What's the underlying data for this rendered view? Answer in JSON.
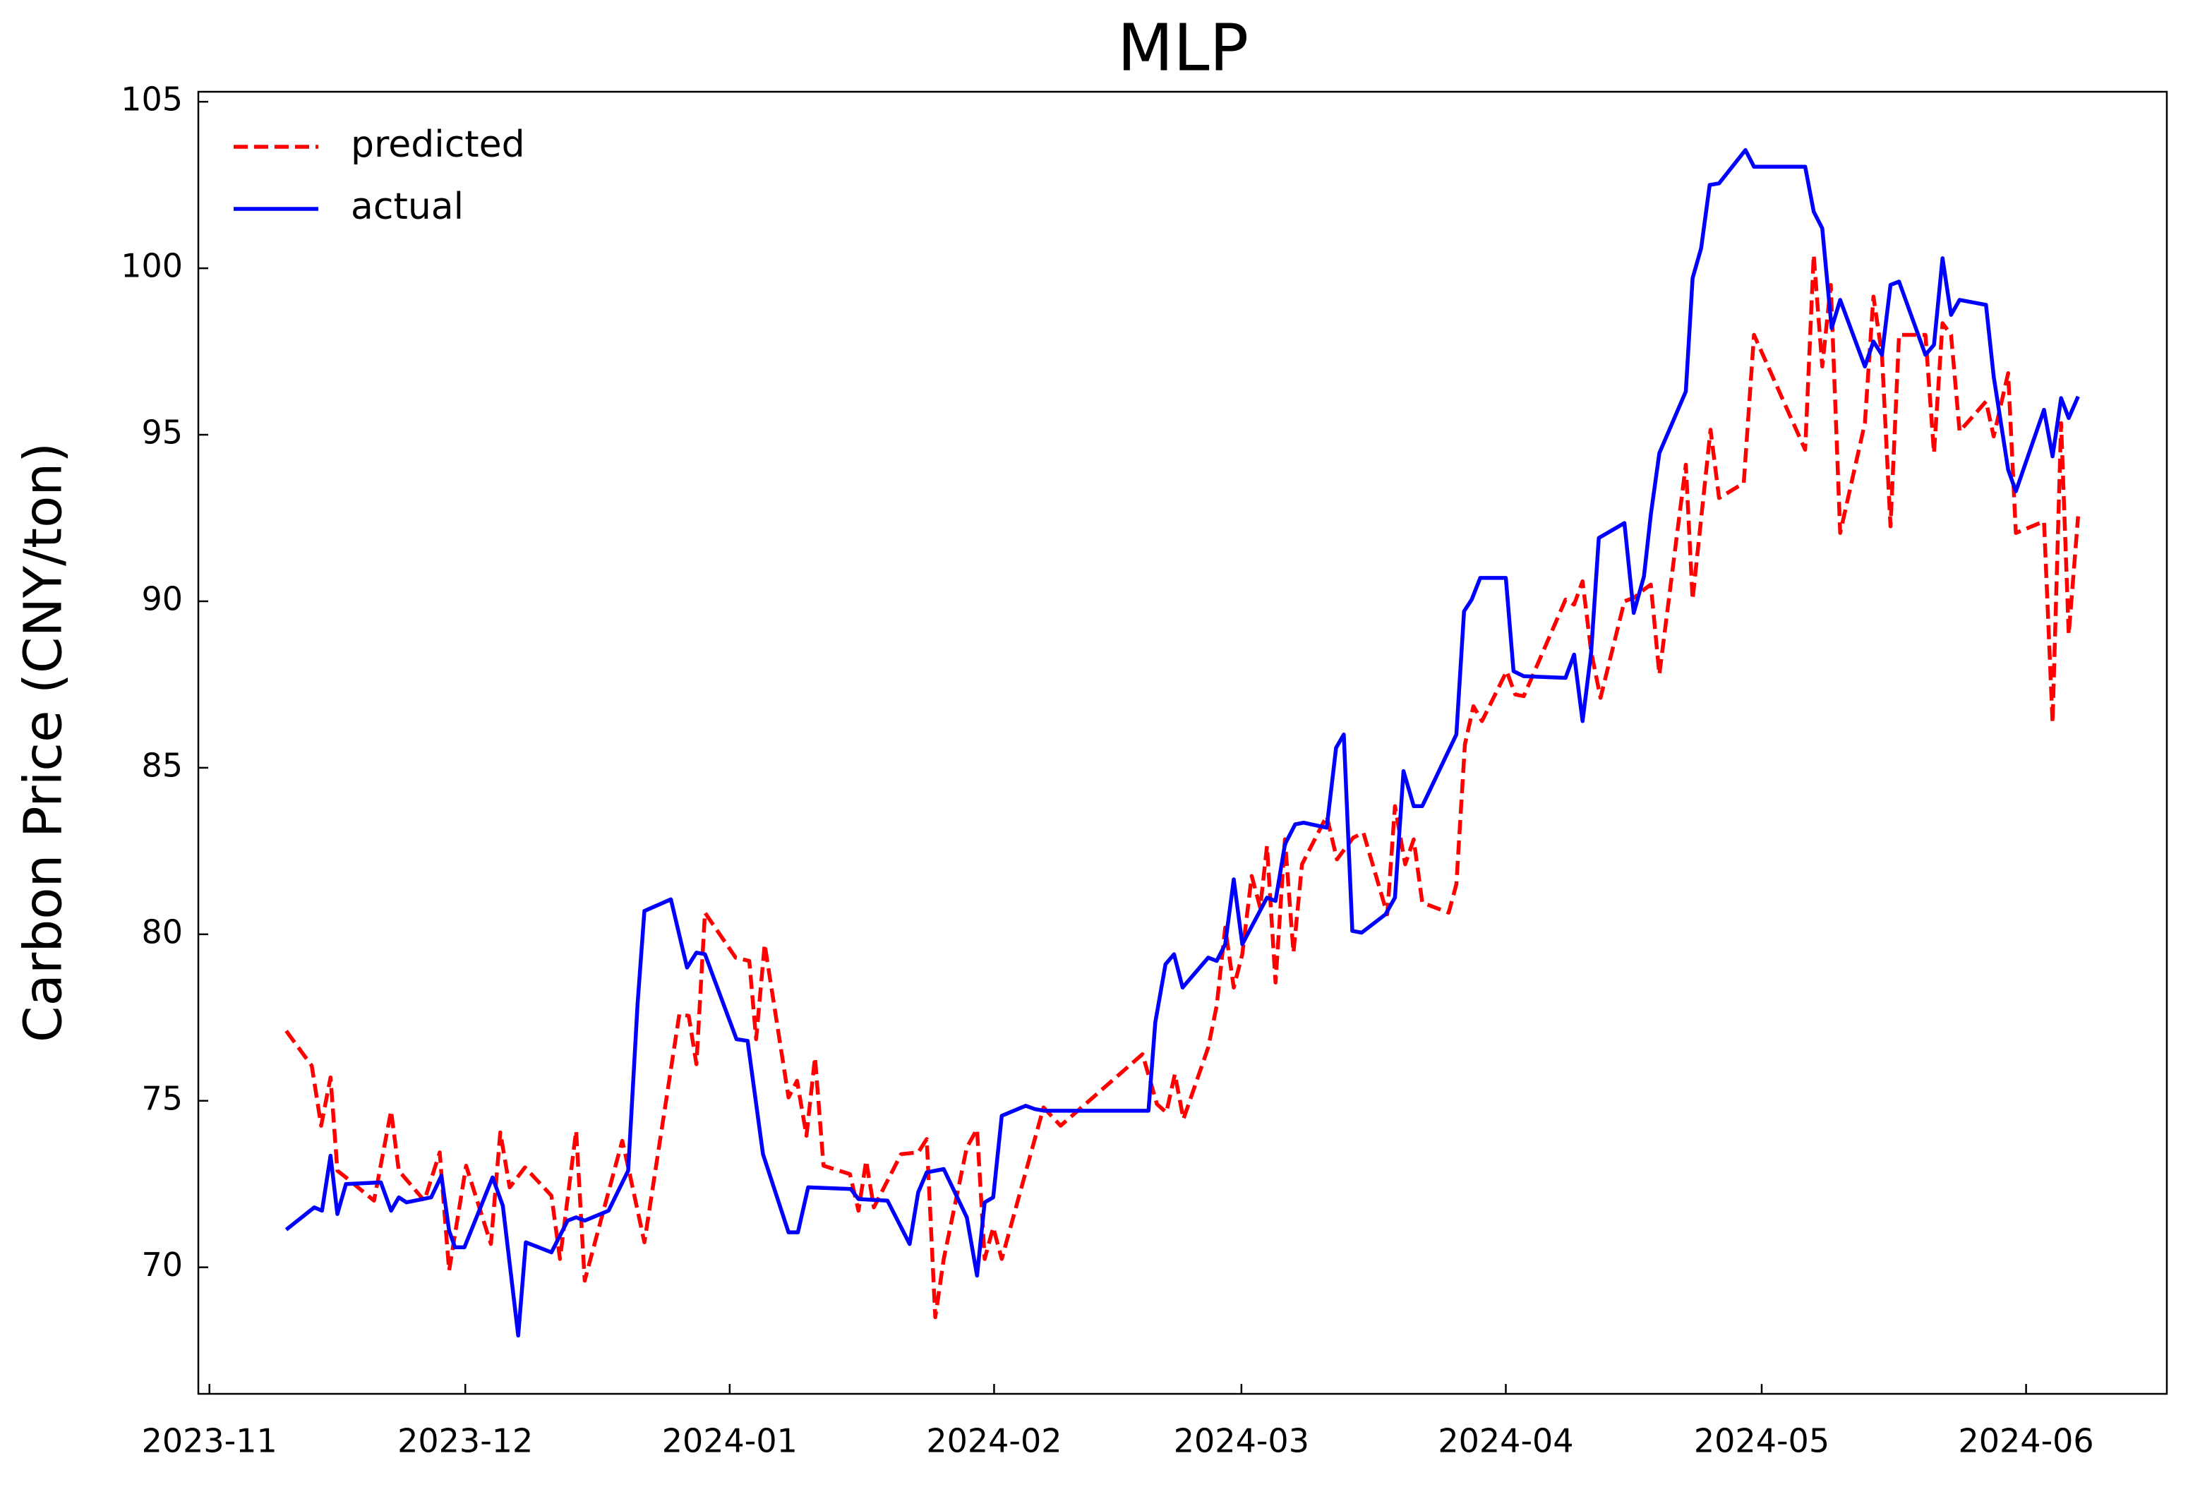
{
  "chart_data": {
    "type": "line",
    "title": "MLP",
    "y_label": "Carbon Price (CNY/ton)",
    "xlim": [
      -1.3,
      229.5
    ],
    "ylim": [
      66.2,
      105.3
    ],
    "xticks": [
      {
        "value": 0,
        "label": "2023-11"
      },
      {
        "value": 30,
        "label": "2023-12"
      },
      {
        "value": 61,
        "label": "2024-01"
      },
      {
        "value": 92,
        "label": "2024-02"
      },
      {
        "value": 121,
        "label": "2024-03"
      },
      {
        "value": 152,
        "label": "2024-04"
      },
      {
        "value": 182,
        "label": "2024-05"
      },
      {
        "value": 213,
        "label": "2024-06"
      }
    ],
    "yticks": [
      70,
      75,
      80,
      85,
      90,
      95,
      100,
      105
    ],
    "grid": false,
    "legend": "upper left",
    "series": [
      {
        "name": "predicted",
        "color": "#ff0000",
        "dash": true,
        "x": [
          9.0,
          12.0,
          13.1,
          14.2,
          15.0,
          16.0,
          19.3,
          21.3,
          22.2,
          25.2,
          27.0,
          28.1,
          30.1,
          33.0,
          34.1,
          35.2,
          37.0,
          40.1,
          41.1,
          43.0,
          44.0,
          48.4,
          49.2,
          51.0,
          55.1,
          56.2,
          57.1,
          58.1,
          61.7,
          63.3,
          64.1,
          65.1,
          67.9,
          68.9,
          70.0,
          71.0,
          72.0,
          75.1,
          76.1,
          77.0,
          77.9,
          81.1,
          83.1,
          84.1,
          85.1,
          86.1,
          88.8,
          90.0,
          90.9,
          91.9,
          92.9,
          97.8,
          99.8,
          109.4,
          111.1,
          112.2,
          113.2,
          114.2,
          117.1,
          118.1,
          119.1,
          120.1,
          121.1,
          122.2,
          123.2,
          124.0,
          125.0,
          126.1,
          127.1,
          128.1,
          131.0,
          132.2,
          134.1,
          135.3,
          138.1,
          139.0,
          140.2,
          141.2,
          142.2,
          145.3,
          146.2,
          147.2,
          148.2,
          149.2,
          152.1,
          153.1,
          154.1,
          159.0,
          160.0,
          161.0,
          162.0,
          163.1,
          165.9,
          167.0,
          168.2,
          169.0,
          170.0,
          173.1,
          173.9,
          176.0,
          177.0,
          179.9,
          181.1,
          187.1,
          188.1,
          189.1,
          190.1,
          191.2,
          194.1,
          195.1,
          196.1,
          197.1,
          198.1,
          201.2,
          202.2,
          203.2,
          204.2,
          205.2,
          208.3,
          209.2,
          210.9,
          211.8,
          215.1,
          216.1,
          217.1,
          218.0,
          219.1
        ],
        "values": [
          77.1,
          76.05,
          74.25,
          75.7,
          72.9,
          72.7,
          72.0,
          74.7,
          72.9,
          72.0,
          73.45,
          69.9,
          73.05,
          70.7,
          74.05,
          72.4,
          73.0,
          72.15,
          70.25,
          74.1,
          69.6,
          73.8,
          72.9,
          70.75,
          77.6,
          77.55,
          76.1,
          80.65,
          79.3,
          79.2,
          76.85,
          79.7,
          75.1,
          75.6,
          73.95,
          76.3,
          73.05,
          72.8,
          71.7,
          73.2,
          71.8,
          73.4,
          73.45,
          73.85,
          68.5,
          70.25,
          73.6,
          74.15,
          70.25,
          71.2,
          70.25,
          74.8,
          74.25,
          76.4,
          74.9,
          74.65,
          75.8,
          74.45,
          76.6,
          77.85,
          80.2,
          78.4,
          79.4,
          81.75,
          80.8,
          82.65,
          78.55,
          82.85,
          79.45,
          82.1,
          83.55,
          82.25,
          82.9,
          83.05,
          80.6,
          83.85,
          82.1,
          82.85,
          80.95,
          80.65,
          81.5,
          85.7,
          86.85,
          86.4,
          87.9,
          87.2,
          87.15,
          90.05,
          89.9,
          90.6,
          88.5,
          87.1,
          90.0,
          90.1,
          90.35,
          90.5,
          87.8,
          94.1,
          90.05,
          95.15,
          93.1,
          93.55,
          98.0,
          94.55,
          100.4,
          97.05,
          99.5,
          92.05,
          95.35,
          99.15,
          97.4,
          92.25,
          98.0,
          98.0,
          94.45,
          98.35,
          98.0,
          95.1,
          96.0,
          94.95,
          96.85,
          92.05,
          92.4,
          86.35,
          95.35,
          89.0,
          92.55
        ]
      },
      {
        "name": "actual",
        "color": "#0000ff",
        "dash": false,
        "x": [
          9.0,
          12.3,
          13.2,
          14.2,
          15.0,
          16.0,
          20.1,
          21.3,
          22.2,
          23.1,
          26.0,
          27.2,
          28.1,
          28.8,
          29.9,
          33.2,
          34.4,
          36.2,
          37.1,
          40.1,
          42.0,
          43.0,
          44.0,
          46.8,
          49.1,
          50.2,
          51.0,
          54.1,
          56.0,
          57.1,
          58.1,
          61.8,
          63.1,
          64.9,
          67.9,
          69.0,
          70.2,
          75.2,
          76.1,
          79.5,
          82.1,
          83.1,
          84.1,
          86.1,
          88.8,
          90.0,
          90.9,
          91.9,
          92.9,
          95.7,
          96.8,
          97.9,
          110.1,
          110.9,
          112.1,
          113.1,
          114.1,
          117.1,
          118.1,
          119.1,
          120.1,
          121.1,
          124.0,
          125.0,
          126.1,
          127.3,
          128.3,
          131.0,
          132.1,
          133.0,
          134.0,
          135.1,
          137.9,
          139.0,
          140.0,
          141.2,
          142.2,
          146.2,
          147.1,
          148.0,
          149.0,
          152.0,
          152.9,
          154.1,
          159.0,
          160.0,
          161.0,
          162.0,
          162.9,
          165.9,
          167.0,
          168.2,
          169.0,
          170.0,
          173.1,
          173.9,
          174.9,
          175.9,
          177.0,
          180.1,
          181.1,
          187.1,
          188.1,
          189.1,
          190.2,
          191.2,
          194.1,
          195.1,
          196.1,
          197.1,
          198.1,
          201.2,
          202.2,
          203.2,
          204.2,
          205.2,
          208.3,
          209.2,
          210.9,
          211.8,
          215.1,
          216.1,
          217.1,
          218.0,
          219.1
        ],
        "values": [
          71.13,
          71.8,
          71.7,
          73.35,
          71.6,
          72.5,
          72.55,
          71.7,
          72.1,
          71.95,
          72.1,
          72.75,
          71.1,
          70.6,
          70.6,
          72.7,
          71.85,
          67.95,
          70.75,
          70.45,
          71.4,
          71.5,
          71.4,
          71.7,
          72.9,
          77.9,
          80.7,
          81.05,
          79.0,
          79.45,
          79.4,
          76.85,
          76.8,
          73.4,
          71.05,
          71.05,
          72.4,
          72.35,
          72.05,
          72.0,
          70.7,
          72.25,
          72.85,
          72.95,
          71.5,
          69.75,
          71.95,
          72.1,
          74.55,
          74.85,
          74.75,
          74.7,
          74.7,
          77.35,
          79.1,
          79.4,
          78.4,
          79.3,
          79.2,
          79.7,
          81.65,
          79.7,
          81.1,
          81.0,
          82.7,
          83.3,
          83.35,
          83.2,
          85.6,
          86.0,
          80.1,
          80.05,
          80.6,
          81.1,
          84.9,
          83.85,
          83.85,
          86.0,
          89.7,
          90.05,
          90.7,
          90.7,
          87.9,
          87.75,
          87.7,
          88.4,
          86.4,
          88.45,
          91.9,
          92.35,
          89.65,
          90.75,
          92.6,
          94.45,
          96.3,
          99.7,
          100.6,
          102.5,
          102.55,
          103.55,
          103.05,
          103.05,
          101.7,
          101.2,
          98.2,
          99.05,
          97.05,
          97.8,
          97.4,
          99.5,
          99.6,
          97.4,
          97.7,
          100.3,
          98.6,
          99.05,
          98.9,
          96.75,
          93.95,
          93.3,
          95.75,
          94.35,
          96.1,
          95.5,
          96.15
        ]
      }
    ]
  }
}
